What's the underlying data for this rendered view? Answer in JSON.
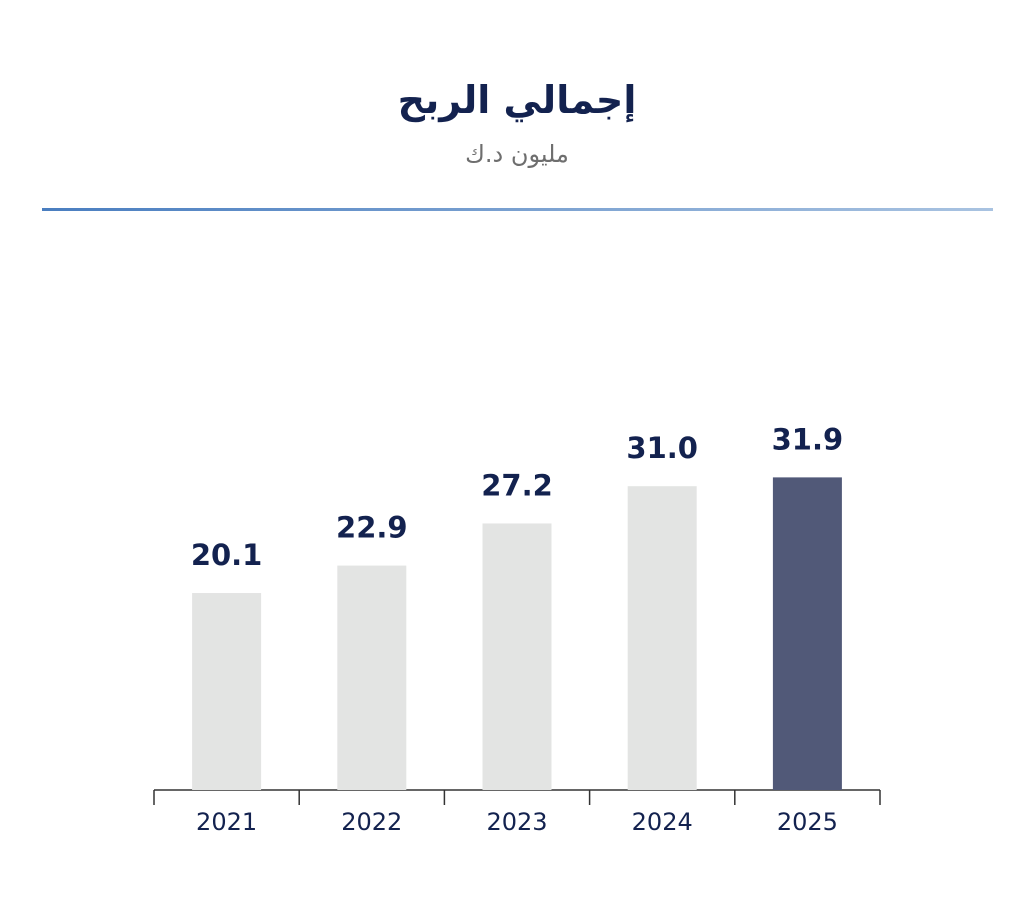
{
  "chart_data": {
    "type": "bar",
    "title": "إجمالي الربح",
    "subtitle": "مليون د.ك",
    "categories": [
      "2021",
      "2022",
      "2023",
      "2024",
      "2025"
    ],
    "series": [
      {
        "values": [
          20.1,
          22.9,
          27.2,
          31.0,
          31.9
        ]
      }
    ],
    "value_labels": [
      "20.1",
      "22.9",
      "27.2",
      "31.0",
      "31.9"
    ],
    "ylim": [
      0,
      40
    ],
    "grid": false,
    "highlight_index": 4,
    "colors": {
      "bar": "#e3e4e3",
      "highlight_bar": "#515978",
      "label": "#13224f",
      "axis": "#333333",
      "divider": "#4a7ec0"
    }
  }
}
